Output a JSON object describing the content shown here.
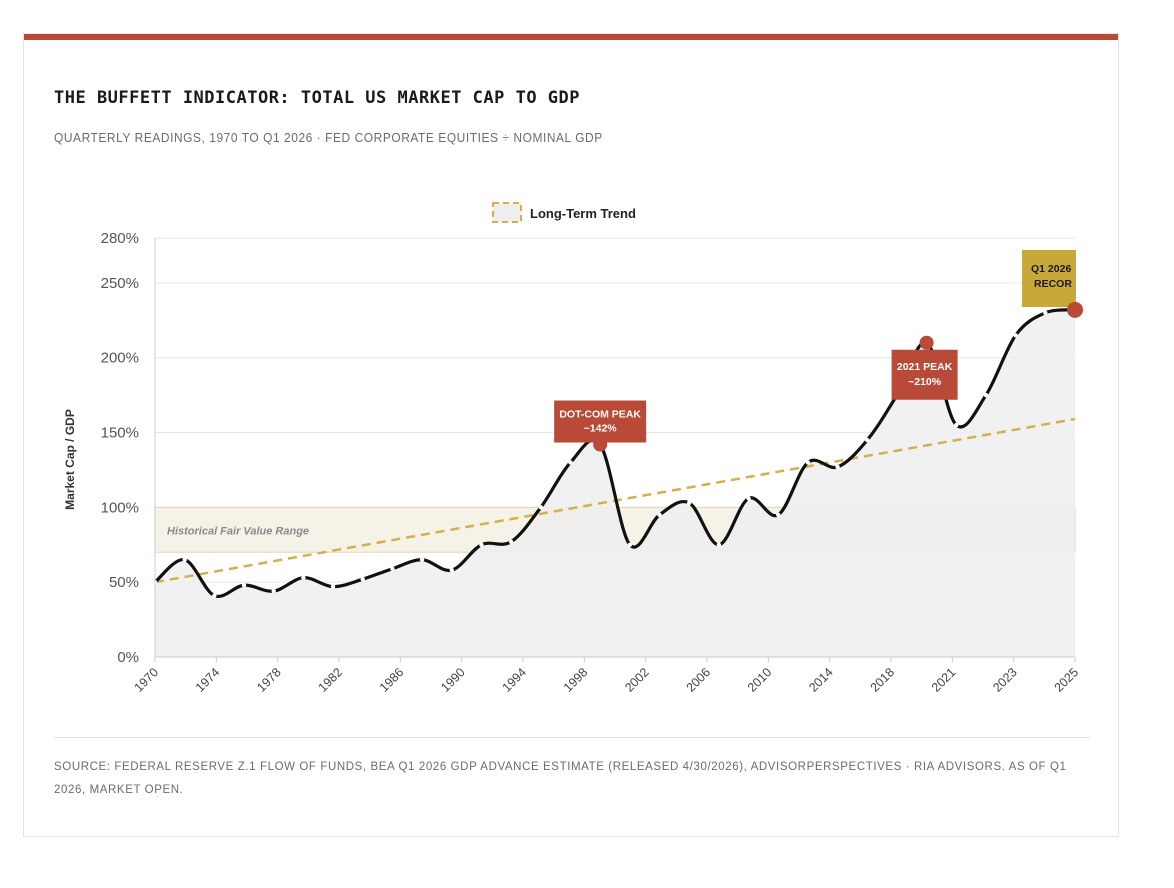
{
  "title": "THE BUFFETT INDICATOR: TOTAL US MARKET CAP TO GDP",
  "subtitle": "QUARTERLY READINGS, 1970 TO Q1 2026 · FED CORPORATE EQUITIES ÷ NOMINAL GDP",
  "source": "SOURCE: FEDERAL RESERVE Z.1 FLOW OF FUNDS, BEA Q1 2026 GDP ADVANCE ESTIMATE (RELEASED 4/30/2026), ADVISORPERSPECTIVES · RIA ADVISORS. AS OF Q1 2026, MARKET OPEN.",
  "colors": {
    "accent": "#b84a37",
    "trend": "#d4b04c",
    "line": "#111111",
    "area": "#eeeeee",
    "band": "#f5f1e6",
    "record_badge": "#c9a83a"
  },
  "chart_data": {
    "type": "line",
    "ylabel": "Market Cap / GDP",
    "xlabel": "",
    "y_ticks": [
      "0%",
      "50%",
      "100%",
      "150%",
      "200%",
      "250%",
      "280%"
    ],
    "y_tick_values": [
      0,
      50,
      100,
      150,
      200,
      250,
      280
    ],
    "x_tick_labels": [
      "1970",
      "1974",
      "1978",
      "1982",
      "1986",
      "1990",
      "1994",
      "1998",
      "2002",
      "2006",
      "2010",
      "2014",
      "2018",
      "2021",
      "2023",
      "2025"
    ],
    "ylim": [
      0,
      280
    ],
    "grid": true,
    "legend_position": "top-center",
    "legend": [
      "Long-Term Trend"
    ],
    "series": [
      {
        "values": [
          50,
          65,
          41,
          48,
          44,
          53,
          47,
          52,
          59,
          65,
          58,
          75,
          77,
          100,
          130,
          142,
          75,
          95,
          103,
          75,
          106,
          95,
          130,
          127,
          145,
          175,
          210,
          155,
          175,
          215,
          230,
          232
        ]
      }
    ],
    "trend": {
      "name": "Long-Term Trend",
      "start": 50,
      "end": 159
    },
    "fair_value_band": {
      "label": "Historical Fair Value Range",
      "low": 70,
      "high": 100
    },
    "annotations": [
      {
        "lines": [
          "DOT-COM PEAK",
          "~142%"
        ],
        "value": 142
      },
      {
        "lines": [
          "2021 PEAK",
          "~210%"
        ],
        "value": 210
      },
      {
        "lines": [
          "Q1 2026",
          "RECOR"
        ],
        "value": 232
      }
    ]
  }
}
